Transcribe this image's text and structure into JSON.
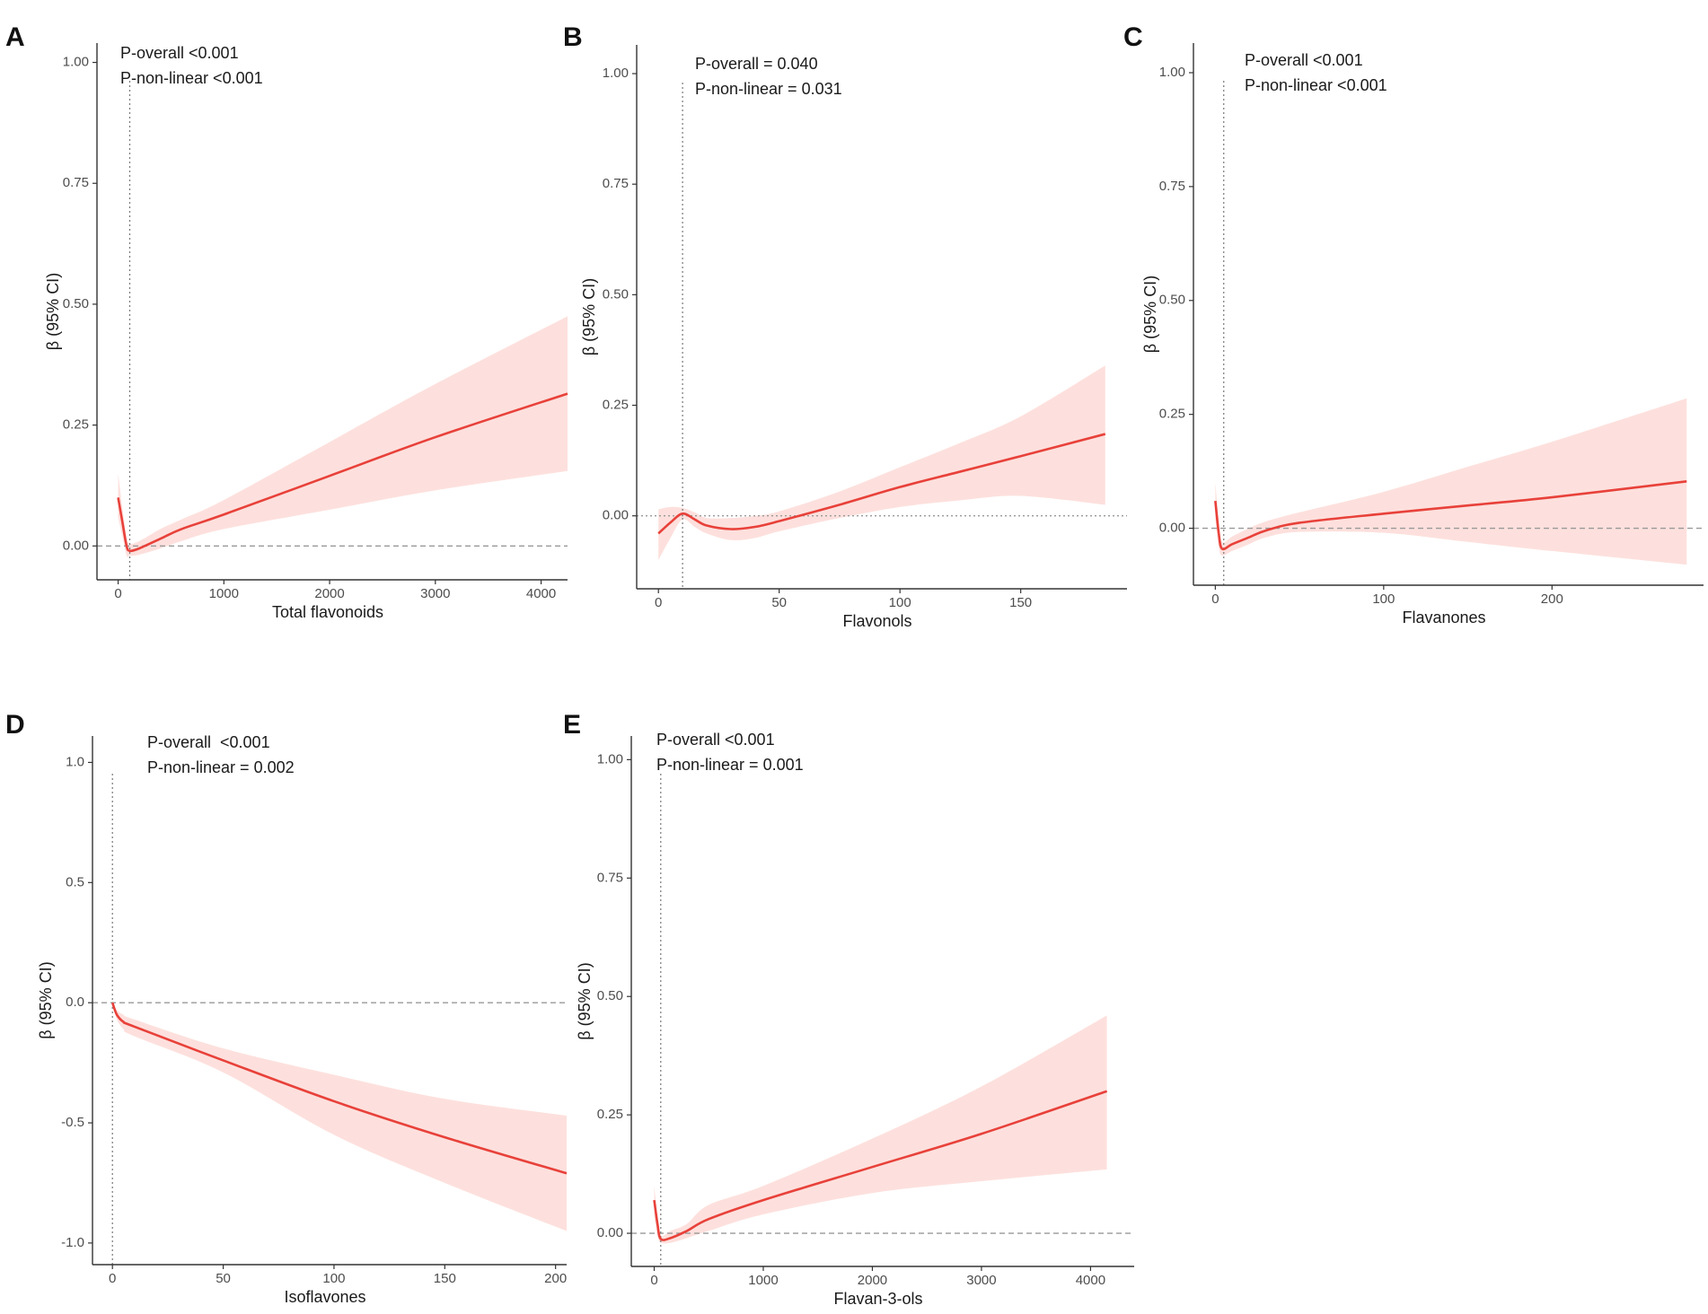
{
  "colors": {
    "line": "#e8413a",
    "band": "#fde0dd",
    "axis": "#333333",
    "ref": "#999999"
  },
  "ylabel": "β (95% CI)",
  "chart_data": [
    {
      "id": "A",
      "type": "line",
      "xlabel": "Total flavonoids",
      "ylabel": "β (95% CI)",
      "xlim": [
        -200,
        4250
      ],
      "ylim": [
        -0.07,
        1.04
      ],
      "xticks": [
        0,
        1000,
        2000,
        3000,
        4000
      ],
      "xtick_labels": [
        "0",
        "1000",
        "2000",
        "3000",
        "4000"
      ],
      "yticks": [
        0,
        0.25,
        0.5,
        0.75,
        1.0
      ],
      "ytick_labels": [
        "0.00",
        "0.25",
        "0.50",
        "0.75",
        "1.00"
      ],
      "annotations": [
        "P-overall <0.001",
        "P-non-linear <0.001"
      ],
      "ref_x": 110,
      "ref_y": 0,
      "ref_y_style": "dashed",
      "x": [
        0,
        40,
        80,
        110,
        200,
        400,
        600,
        1000,
        2000,
        3000,
        4250
      ],
      "y": [
        0.1,
        0.05,
        0.0,
        -0.01,
        -0.005,
        0.015,
        0.035,
        0.065,
        0.145,
        0.225,
        0.315
      ],
      "lower": [
        0.06,
        0.02,
        -0.02,
        -0.02,
        -0.018,
        -0.005,
        0.01,
        0.035,
        0.075,
        0.115,
        0.155
      ],
      "upper": [
        0.15,
        0.08,
        0.02,
        0.005,
        0.01,
        0.035,
        0.055,
        0.095,
        0.215,
        0.335,
        0.475
      ]
    },
    {
      "id": "B",
      "type": "line",
      "xlabel": "Flavonols",
      "ylabel": "β (95% CI)",
      "xlim": [
        -9,
        194
      ],
      "ylim": [
        -0.165,
        1.065
      ],
      "xticks": [
        0,
        50,
        100,
        150
      ],
      "xtick_labels": [
        "0",
        "50",
        "100",
        "150"
      ],
      "yticks": [
        0,
        0.25,
        0.5,
        0.75,
        1.0
      ],
      "ytick_labels": [
        "0.00",
        "0.25",
        "0.50",
        "0.75",
        "1.00"
      ],
      "annotations": [
        "P-overall = 0.040",
        "P-non-linear = 0.031"
      ],
      "ref_x": 10,
      "ref_y": 0,
      "ref_y_style": "dotted",
      "x": [
        0,
        5,
        10,
        15,
        20,
        30,
        40,
        50,
        75,
        100,
        125,
        150,
        185
      ],
      "y": [
        -0.04,
        -0.015,
        0.005,
        -0.008,
        -0.022,
        -0.03,
        -0.025,
        -0.012,
        0.025,
        0.065,
        0.1,
        0.135,
        0.185
      ],
      "lower": [
        -0.1,
        -0.05,
        -0.008,
        -0.025,
        -0.04,
        -0.055,
        -0.05,
        -0.035,
        -0.005,
        0.02,
        0.035,
        0.045,
        0.025
      ],
      "upper": [
        0.015,
        0.02,
        0.018,
        0.008,
        -0.005,
        -0.005,
        0.0,
        0.01,
        0.055,
        0.11,
        0.165,
        0.225,
        0.34
      ]
    },
    {
      "id": "C",
      "type": "line",
      "xlabel": "Flavanones",
      "ylabel": "β (95% CI)",
      "xlim": [
        -13,
        290
      ],
      "ylim": [
        -0.125,
        1.065
      ],
      "xticks": [
        0,
        100,
        200
      ],
      "xtick_labels": [
        "0",
        "100",
        "200"
      ],
      "yticks": [
        0,
        0.25,
        0.5,
        0.75,
        1.0
      ],
      "ytick_labels": [
        "0.00",
        "0.25",
        "0.50",
        "0.75",
        "1.00"
      ],
      "annotations": [
        "P-overall <0.001",
        "P-non-linear <0.001"
      ],
      "ref_x": 5,
      "ref_y": 0,
      "ref_y_style": "dashed",
      "x": [
        0,
        2,
        4,
        10,
        20,
        30,
        50,
        100,
        150,
        200,
        280
      ],
      "y": [
        0.06,
        -0.01,
        -0.045,
        -0.035,
        -0.02,
        -0.005,
        0.012,
        0.032,
        0.05,
        0.068,
        0.103
      ],
      "lower": [
        0.02,
        -0.04,
        -0.06,
        -0.05,
        -0.035,
        -0.02,
        -0.008,
        -0.01,
        -0.03,
        -0.05,
        -0.08
      ],
      "upper": [
        0.1,
        0.02,
        -0.03,
        -0.018,
        0.0,
        0.015,
        0.035,
        0.08,
        0.135,
        0.19,
        0.285
      ]
    },
    {
      "id": "D",
      "type": "line",
      "xlabel": "Isoflavones",
      "ylabel": "β (95% CI)",
      "xlim": [
        -9,
        205
      ],
      "ylim": [
        -1.09,
        1.11
      ],
      "xticks": [
        0,
        50,
        100,
        150,
        200
      ],
      "xtick_labels": [
        "0",
        "50",
        "100",
        "150",
        "200"
      ],
      "yticks": [
        -1.0,
        -0.5,
        0,
        0.5,
        1.0
      ],
      "ytick_labels": [
        "-1.0",
        "-0.5",
        "0.0",
        "0.5",
        "1.0"
      ],
      "annotations": [
        "P-overall  <0.001",
        "P-non-linear = 0.002"
      ],
      "ref_x": 0,
      "ref_y": 0,
      "ref_y_style": "dashed",
      "x": [
        0,
        2,
        5,
        10,
        50,
        100,
        150,
        205
      ],
      "y": [
        0.0,
        -0.05,
        -0.08,
        -0.1,
        -0.24,
        -0.41,
        -0.56,
        -0.71
      ],
      "lower": [
        -0.01,
        -0.07,
        -0.11,
        -0.14,
        -0.29,
        -0.55,
        -0.75,
        -0.95
      ],
      "upper": [
        0.01,
        -0.03,
        -0.05,
        -0.07,
        -0.19,
        -0.3,
        -0.4,
        -0.47
      ]
    },
    {
      "id": "E",
      "type": "line",
      "xlabel": "Flavan-3-ols",
      "ylabel": "β (95% CI)",
      "xlim": [
        -210,
        4400
      ],
      "ylim": [
        -0.07,
        1.05
      ],
      "xticks": [
        0,
        1000,
        2000,
        3000,
        4000
      ],
      "xtick_labels": [
        "0",
        "1000",
        "2000",
        "3000",
        "4000"
      ],
      "yticks": [
        0,
        0.25,
        0.5,
        0.75,
        1.0
      ],
      "ytick_labels": [
        "0.00",
        "0.25",
        "0.50",
        "0.75",
        "1.00"
      ],
      "annotations": [
        "P-overall <0.001",
        "P-non-linear = 0.001"
      ],
      "ref_x": 60,
      "ref_y": 0,
      "ref_y_style": "dashed",
      "x": [
        0,
        30,
        60,
        150,
        300,
        500,
        1000,
        2000,
        3000,
        4150
      ],
      "y": [
        0.07,
        0.02,
        -0.012,
        -0.01,
        0.005,
        0.03,
        0.07,
        0.14,
        0.21,
        0.3
      ],
      "lower": [
        0.04,
        -0.005,
        -0.02,
        -0.02,
        -0.01,
        0.005,
        0.04,
        0.085,
        0.11,
        0.135
      ],
      "upper": [
        0.1,
        0.04,
        -0.005,
        0.005,
        0.02,
        0.06,
        0.1,
        0.2,
        0.31,
        0.46
      ]
    }
  ]
}
